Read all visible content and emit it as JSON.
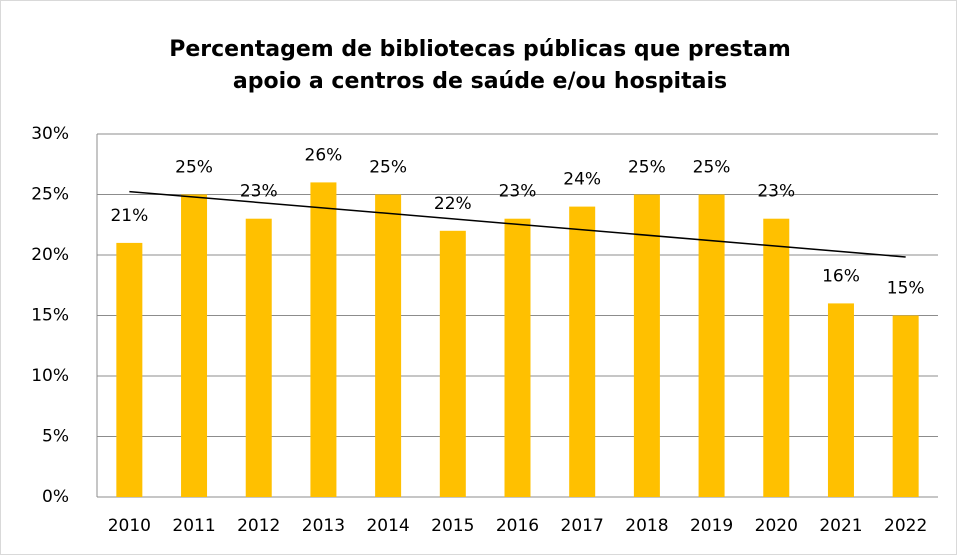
{
  "chart_data": {
    "type": "bar",
    "title": [
      "Percentagem de bibliotecas públicas que prestam",
      "apoio a centros de saúde e/ou hospitais"
    ],
    "categories": [
      "2010",
      "2011",
      "2012",
      "2013",
      "2014",
      "2015",
      "2016",
      "2017",
      "2018",
      "2019",
      "2020",
      "2021",
      "2022"
    ],
    "values": [
      21,
      25,
      23,
      26,
      25,
      22,
      23,
      24,
      25,
      25,
      23,
      16,
      15
    ],
    "value_labels": [
      "21%",
      "25%",
      "23%",
      "26%",
      "25%",
      "22%",
      "23%",
      "24%",
      "25%",
      "25%",
      "23%",
      "16%",
      "15%"
    ],
    "color": "#ffc000",
    "ylim": [
      0,
      30
    ],
    "yticks": [
      {
        "value": 0,
        "label": "0%"
      },
      {
        "value": 5,
        "label": "5%"
      },
      {
        "value": 10,
        "label": "10%"
      },
      {
        "value": 15,
        "label": "15%"
      },
      {
        "value": 20,
        "label": "20%"
      },
      {
        "value": 25,
        "label": "25%"
      },
      {
        "value": 30,
        "label": "30%"
      }
    ],
    "grid": true,
    "trendline": "linear"
  }
}
